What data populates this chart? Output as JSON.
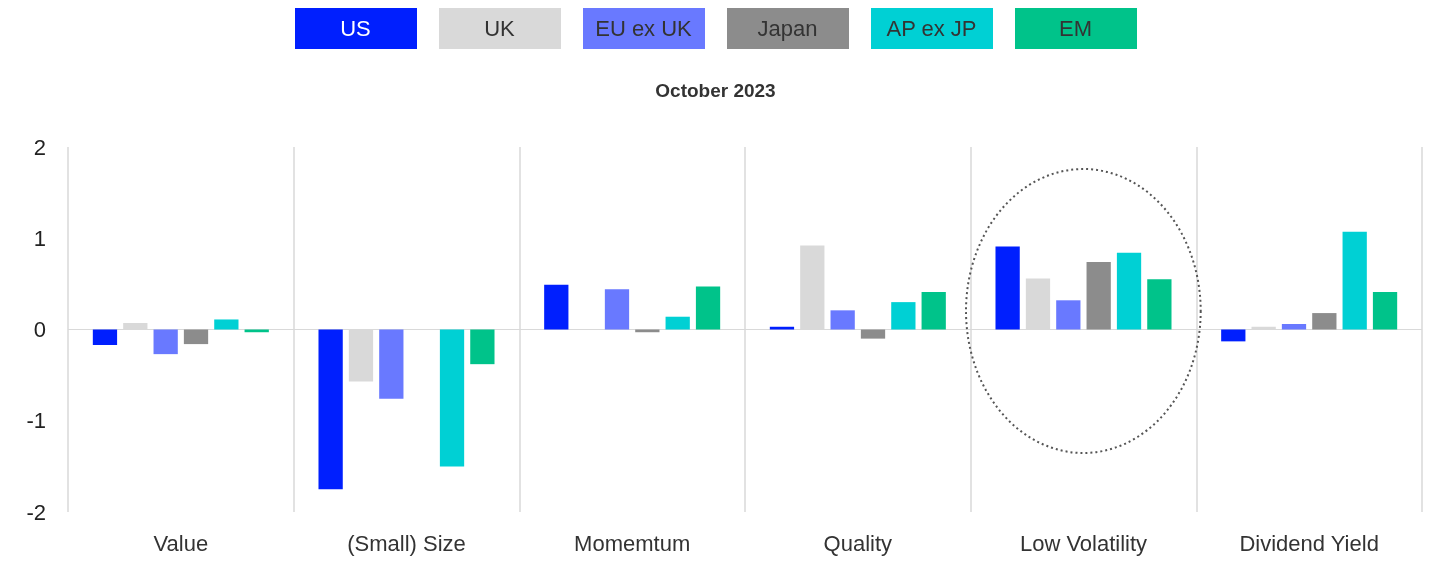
{
  "chart_data": {
    "type": "bar",
    "title": "October 2023",
    "categories": [
      "Value",
      "(Small) Size",
      "Momemtum",
      "Quality",
      "Low Volatility",
      "Dividend Yield"
    ],
    "series": [
      {
        "name": "US",
        "color": "#001ffe",
        "values": [
          -0.17,
          -1.75,
          0.49,
          0.03,
          0.91,
          -0.13
        ]
      },
      {
        "name": "UK",
        "color": "#d9d9d9",
        "values": [
          0.07,
          -0.57,
          null,
          0.92,
          0.56,
          0.03
        ]
      },
      {
        "name": "EU ex UK",
        "color": "#6979ff",
        "values": [
          -0.27,
          -0.76,
          0.44,
          0.21,
          0.32,
          0.06
        ]
      },
      {
        "name": "Japan",
        "color": "#8c8c8c",
        "values": [
          -0.16,
          null,
          -0.03,
          -0.1,
          0.74,
          0.18
        ]
      },
      {
        "name": "AP ex JP",
        "color": "#00d0d4",
        "values": [
          0.11,
          -1.5,
          0.14,
          0.3,
          0.84,
          1.07
        ]
      },
      {
        "name": "EM",
        "color": "#00c38a",
        "values": [
          -0.03,
          -0.38,
          0.47,
          0.41,
          0.55,
          0.41
        ]
      }
    ],
    "ylim": [
      -2,
      2
    ],
    "yticks": [
      -2,
      -1,
      0,
      1,
      2
    ],
    "grid": "x",
    "legend": "top"
  }
}
